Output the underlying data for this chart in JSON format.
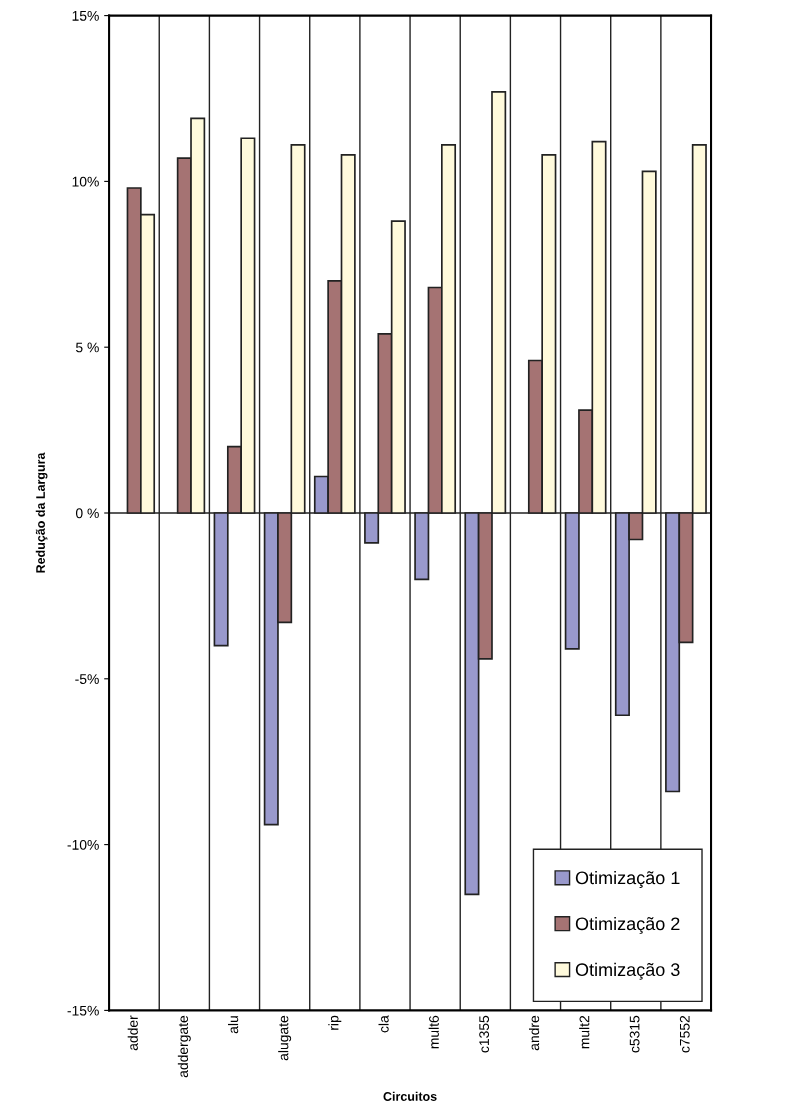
{
  "chart_data": {
    "type": "bar",
    "xlabel": "Circuitos",
    "ylabel": "Redução da Largura",
    "categories": [
      "adder",
      "addergate",
      "alu",
      "alugate",
      "rip",
      "cla",
      "mult6",
      "c1355",
      "andre",
      "mult2",
      "c5315",
      "c7552"
    ],
    "series": [
      {
        "name": "Otimização 1",
        "color": "#9999cc",
        "values": [
          0,
          0,
          -4.0,
          -9.4,
          1.1,
          -0.9,
          -2.0,
          -11.5,
          0,
          -4.1,
          -6.1,
          -8.4
        ]
      },
      {
        "name": "Otimização 2",
        "color": "#a57373",
        "values": [
          9.8,
          10.7,
          2.0,
          -3.3,
          7.0,
          5.4,
          6.8,
          -4.4,
          4.6,
          3.1,
          -0.8,
          -3.9
        ]
      },
      {
        "name": "Otimização 3",
        "color": "#fffadc",
        "values": [
          9.0,
          11.9,
          11.3,
          11.1,
          10.8,
          8.8,
          11.1,
          12.7,
          10.8,
          11.2,
          10.3,
          11.1
        ]
      }
    ],
    "ylim": [
      -15,
      15
    ],
    "yticks": [
      {
        "value": -15,
        "label": "-15%"
      },
      {
        "value": -10,
        "label": "-10%"
      },
      {
        "value": -5,
        "label": "-5%"
      },
      {
        "value": 0,
        "label": "0 %"
      },
      {
        "value": 5,
        "label": "5 %"
      },
      {
        "value": 10,
        "label": "10%"
      },
      {
        "value": 15,
        "label": "15%"
      }
    ],
    "ref_lines": [
      {
        "axis": "y",
        "value": 0,
        "color": "#222222"
      }
    ],
    "grid": "x",
    "legend": "bottom right"
  }
}
